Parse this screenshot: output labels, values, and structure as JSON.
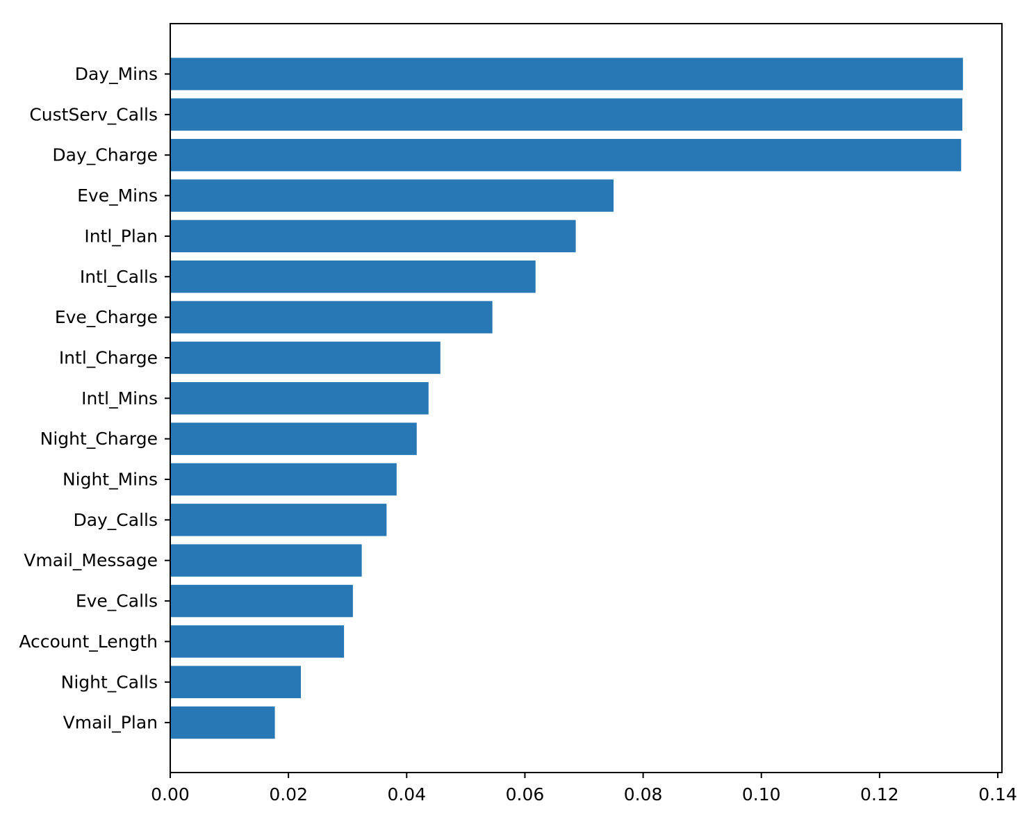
{
  "chart_data": {
    "type": "bar",
    "orientation": "horizontal",
    "title": "",
    "xlabel": "",
    "ylabel": "",
    "categories": [
      "Day_Mins",
      "CustServ_Calls",
      "Day_Charge",
      "Eve_Mins",
      "Intl_Plan",
      "Intl_Calls",
      "Eve_Charge",
      "Intl_Charge",
      "Intl_Mins",
      "Night_Charge",
      "Night_Mins",
      "Day_Calls",
      "Vmail_Message",
      "Eve_Calls",
      "Account_Length",
      "Night_Calls",
      "Vmail_Plan"
    ],
    "values": [
      0.1341,
      0.134,
      0.1338,
      0.075,
      0.0686,
      0.0618,
      0.0545,
      0.0457,
      0.0437,
      0.0417,
      0.0383,
      0.0366,
      0.0324,
      0.0309,
      0.0294,
      0.0221,
      0.0177
    ],
    "xlim": [
      0.0,
      0.1407
    ],
    "xticks": [
      0.0,
      0.02,
      0.04,
      0.06,
      0.08,
      0.1,
      0.12,
      0.14
    ],
    "xtick_labels": [
      "0.00",
      "0.02",
      "0.04",
      "0.06",
      "0.08",
      "0.10",
      "0.12",
      "0.14"
    ],
    "grid": false,
    "legend": "none",
    "bar_color": "#2878b5"
  }
}
